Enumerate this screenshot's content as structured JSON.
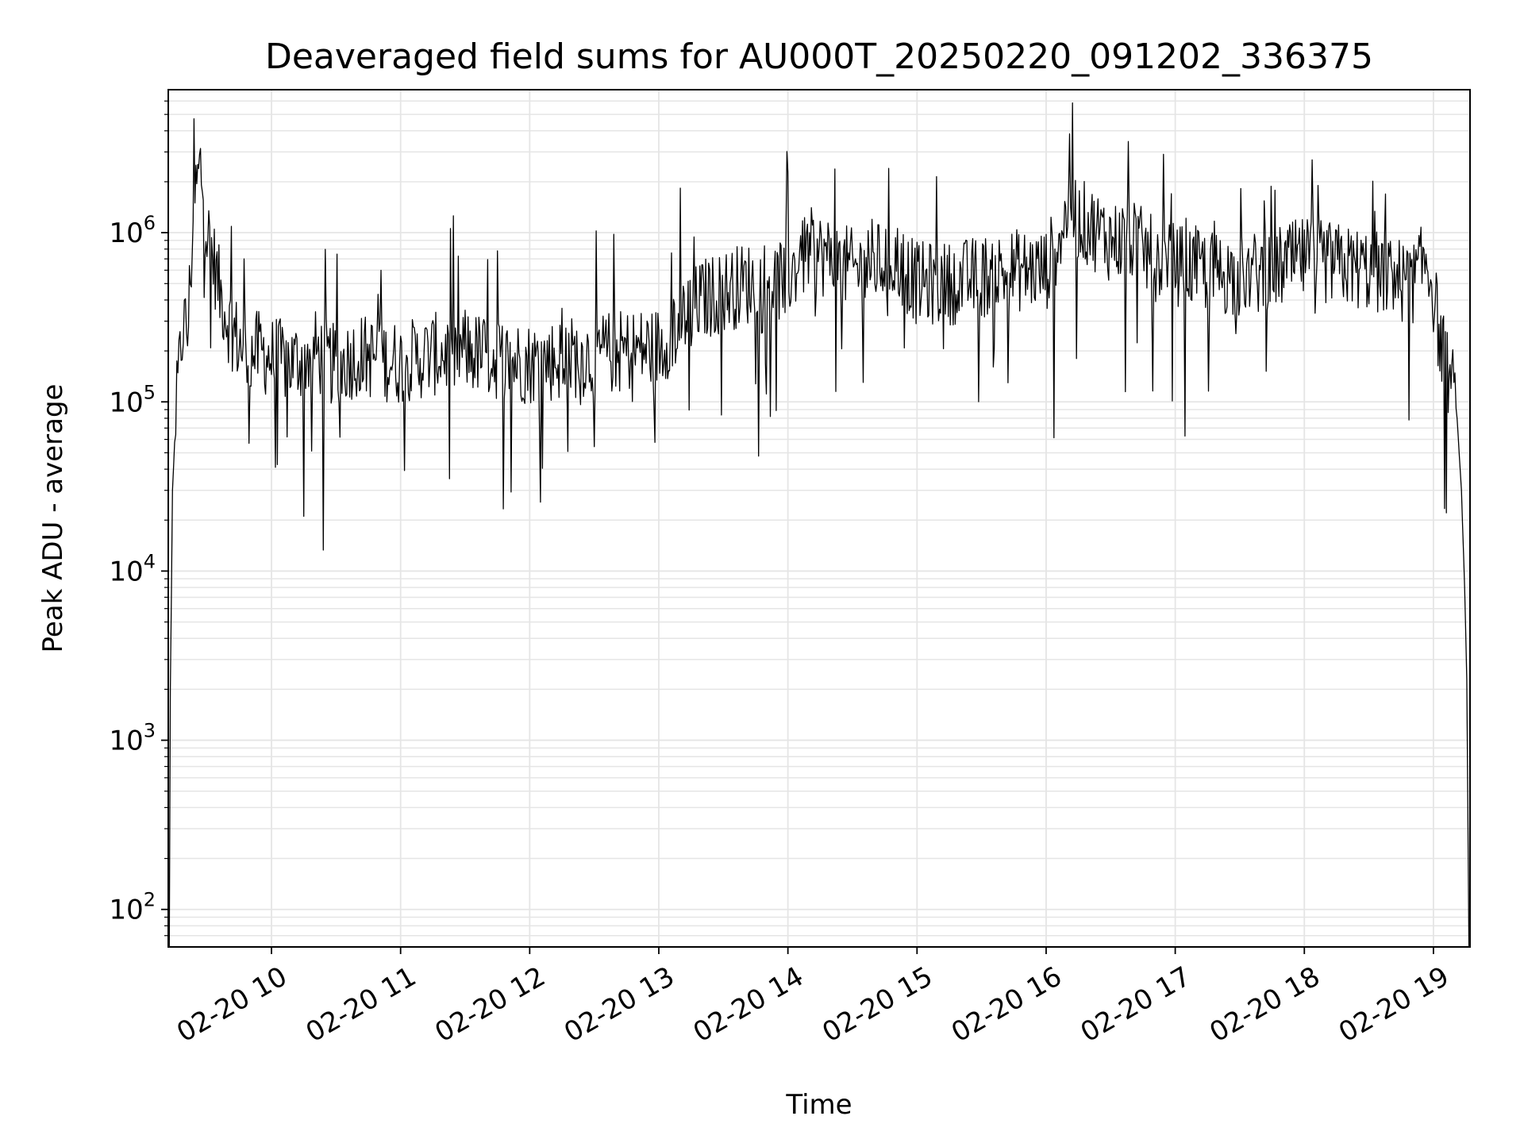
{
  "chart_data": {
    "type": "line",
    "title": "Deaveraged field sums for AU000T_20250220_091202_336375",
    "xlabel": "Time",
    "ylabel": "Peak ADU - average",
    "xscale": "time",
    "yscale": "log",
    "xlim": [
      "2025-02-20T09:12:02",
      "2025-02-20T19:17:00"
    ],
    "ylim": [
      60,
      7000000
    ],
    "x_ticks": [
      {
        "t": "2025-02-20T10:00",
        "label": "02-20 10"
      },
      {
        "t": "2025-02-20T11:00",
        "label": "02-20 11"
      },
      {
        "t": "2025-02-20T12:00",
        "label": "02-20 12"
      },
      {
        "t": "2025-02-20T13:00",
        "label": "02-20 13"
      },
      {
        "t": "2025-02-20T14:00",
        "label": "02-20 14"
      },
      {
        "t": "2025-02-20T15:00",
        "label": "02-20 15"
      },
      {
        "t": "2025-02-20T16:00",
        "label": "02-20 16"
      },
      {
        "t": "2025-02-20T17:00",
        "label": "02-20 17"
      },
      {
        "t": "2025-02-20T18:00",
        "label": "02-20 18"
      },
      {
        "t": "2025-02-20T19:00",
        "label": "02-20 19"
      }
    ],
    "y_ticks": [
      {
        "value": 100,
        "base": "10",
        "exp": "2"
      },
      {
        "value": 1000,
        "base": "10",
        "exp": "3"
      },
      {
        "value": 10000,
        "base": "10",
        "exp": "4"
      },
      {
        "value": 100000,
        "base": "10",
        "exp": "5"
      },
      {
        "value": 1000000,
        "base": "10",
        "exp": "6"
      }
    ],
    "grid": true,
    "line_color": "#000000",
    "grid_color": "#e5e5e5",
    "series": [
      {
        "x": [
          "2025-02-20T09:12:30",
          "2025-02-20T09:13:00",
          "2025-02-20T09:14:00",
          "2025-02-20T09:15:30",
          "2025-02-20T09:17:00",
          "2025-02-20T09:19:00",
          "2025-02-20T09:21:00",
          "2025-02-20T09:24:00",
          "2025-02-20T09:27:00",
          "2025-02-20T09:30:00",
          "2025-02-20T09:33:00",
          "2025-02-20T09:36:00",
          "2025-02-20T09:40:00",
          "2025-02-20T09:45:00",
          "2025-02-20T09:50:00",
          "2025-02-20T09:55:00",
          "2025-02-20T10:00:00",
          "2025-02-20T10:10:00",
          "2025-02-20T10:20:00",
          "2025-02-20T10:30:00",
          "2025-02-20T10:40:00",
          "2025-02-20T10:50:00",
          "2025-02-20T11:00:00",
          "2025-02-20T11:15:00",
          "2025-02-20T11:30:00",
          "2025-02-20T11:45:00",
          "2025-02-20T12:00:00",
          "2025-02-20T12:15:00",
          "2025-02-20T12:30:00",
          "2025-02-20T12:45:00",
          "2025-02-20T13:00:00",
          "2025-02-20T13:10:00",
          "2025-02-20T13:20:00",
          "2025-02-20T13:30:00",
          "2025-02-20T13:40:00",
          "2025-02-20T13:50:00",
          "2025-02-20T14:00:00",
          "2025-02-20T14:10:00",
          "2025-02-20T14:20:00",
          "2025-02-20T14:30:00",
          "2025-02-20T14:40:00",
          "2025-02-20T14:50:00",
          "2025-02-20T15:00:00",
          "2025-02-20T15:15:00",
          "2025-02-20T15:30:00",
          "2025-02-20T15:45:00",
          "2025-02-20T16:00:00",
          "2025-02-20T16:10:00",
          "2025-02-20T16:20:00",
          "2025-02-20T16:30:00",
          "2025-02-20T16:40:00",
          "2025-02-20T16:50:00",
          "2025-02-20T17:00:00",
          "2025-02-20T17:15:00",
          "2025-02-20T17:30:00",
          "2025-02-20T17:45:00",
          "2025-02-20T18:00:00",
          "2025-02-20T18:15:00",
          "2025-02-20T18:30:00",
          "2025-02-20T18:40:00",
          "2025-02-20T18:50:00",
          "2025-02-20T18:57:00",
          "2025-02-20T19:00:00",
          "2025-02-20T19:03:00",
          "2025-02-20T19:06:00",
          "2025-02-20T19:09:00",
          "2025-02-20T19:11:00",
          "2025-02-20T19:13:00",
          "2025-02-20T19:14:30",
          "2025-02-20T19:15:30",
          "2025-02-20T19:16:30"
        ],
        "y": [
          60,
          2000,
          30000,
          80000,
          150000,
          300000,
          250000,
          1500000,
          2500000,
          1000000,
          700000,
          450000,
          300000,
          220000,
          190000,
          200000,
          180000,
          170000,
          200000,
          160000,
          190000,
          180000,
          170000,
          190000,
          200000,
          180000,
          170000,
          180000,
          190000,
          200000,
          210000,
          300000,
          400000,
          450000,
          500000,
          500000,
          550000,
          800000,
          700000,
          600000,
          650000,
          700000,
          500000,
          500000,
          550000,
          600000,
          600000,
          1300000,
          1100000,
          900000,
          900000,
          700000,
          650000,
          600000,
          550000,
          600000,
          700000,
          650000,
          600000,
          550000,
          500000,
          700000,
          450000,
          230000,
          160000,
          120000,
          80000,
          30000,
          8000,
          2300,
          60
        ]
      }
    ]
  }
}
